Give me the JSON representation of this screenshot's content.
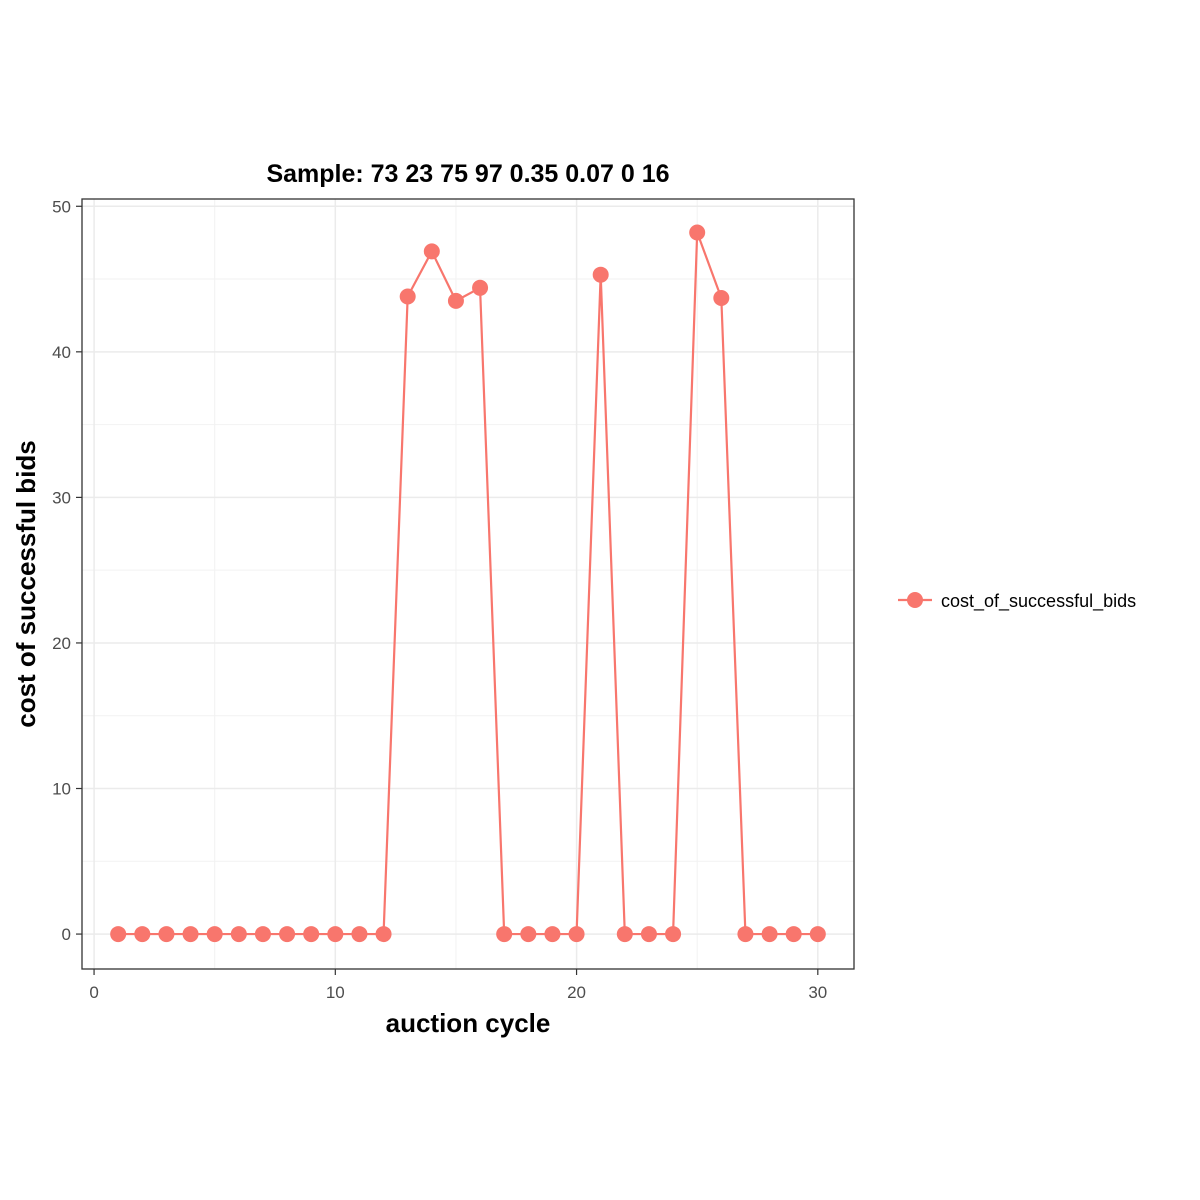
{
  "chart_data": {
    "type": "line",
    "title": "Sample: 73 23 75 97 0.35 0.07 0 16",
    "xlabel": "auction cycle",
    "ylabel": "cost of successful bids",
    "xlim": [
      -0.5,
      31.5
    ],
    "ylim": [
      -2.4,
      50.5
    ],
    "x_ticks": [
      0,
      10,
      20,
      30
    ],
    "y_ticks": [
      0,
      10,
      20,
      30,
      40,
      50
    ],
    "grid": true,
    "legend_position": "right",
    "series": [
      {
        "name": "cost_of_successful_bids",
        "color": "#F8766D",
        "x": [
          1,
          2,
          3,
          4,
          5,
          6,
          7,
          8,
          9,
          10,
          11,
          12,
          13,
          14,
          15,
          16,
          17,
          18,
          19,
          20,
          21,
          22,
          23,
          24,
          25,
          26,
          27,
          28,
          29,
          30
        ],
        "y": [
          0,
          0,
          0,
          0,
          0,
          0,
          0,
          0,
          0,
          0,
          0,
          0,
          43.8,
          46.9,
          43.5,
          44.4,
          0,
          0,
          0,
          0,
          45.3,
          0,
          0,
          0,
          48.2,
          43.7,
          0,
          0,
          0,
          0
        ]
      }
    ]
  }
}
